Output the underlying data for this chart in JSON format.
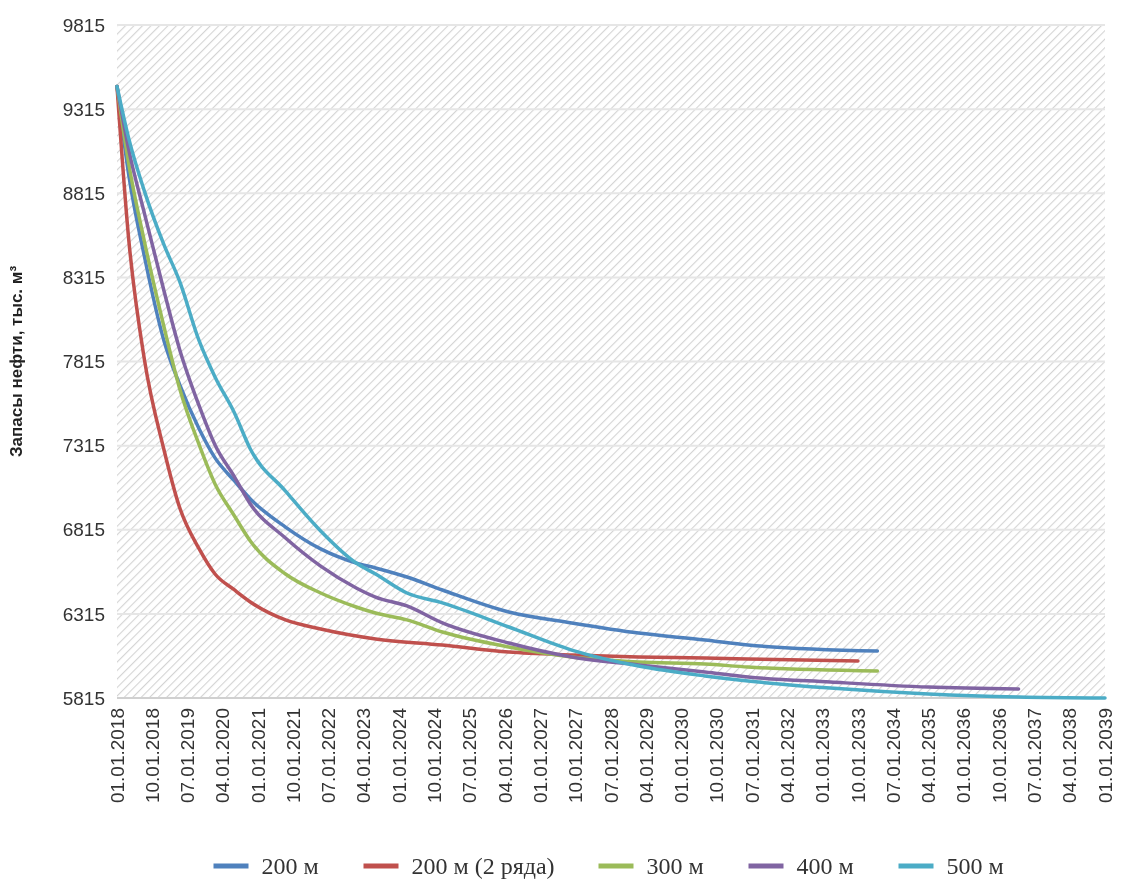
{
  "chart_data": {
    "type": "line",
    "ylabel": "Запасы нефти, тыс. м³",
    "ylim": [
      5815,
      9815
    ],
    "yticks": [
      5815,
      6315,
      6815,
      7315,
      7815,
      8315,
      8815,
      9315,
      9815
    ],
    "xlim": [
      "2018-01-01",
      "2039-01-01"
    ],
    "xticks": [
      {
        "value": "2018-01-01",
        "label": "01.01.2018"
      },
      {
        "value": "2018-10-01",
        "label": "10.01.2018"
      },
      {
        "value": "2019-07-01",
        "label": "07.01.2019"
      },
      {
        "value": "2020-04-01",
        "label": "04.01.2020"
      },
      {
        "value": "2021-01-01",
        "label": "01.01.2021"
      },
      {
        "value": "2021-10-01",
        "label": "10.01.2021"
      },
      {
        "value": "2022-07-01",
        "label": "07.01.2022"
      },
      {
        "value": "2023-04-01",
        "label": "04.01.2023"
      },
      {
        "value": "2024-01-01",
        "label": "01.01.2024"
      },
      {
        "value": "2024-10-01",
        "label": "10.01.2024"
      },
      {
        "value": "2025-07-01",
        "label": "07.01.2025"
      },
      {
        "value": "2026-04-01",
        "label": "04.01.2026"
      },
      {
        "value": "2027-01-01",
        "label": "01.01.2027"
      },
      {
        "value": "2027-10-01",
        "label": "10.01.2027"
      },
      {
        "value": "2028-07-01",
        "label": "07.01.2028"
      },
      {
        "value": "2029-04-01",
        "label": "04.01.2029"
      },
      {
        "value": "2030-01-01",
        "label": "01.01.2030"
      },
      {
        "value": "2030-10-01",
        "label": "10.01.2030"
      },
      {
        "value": "2031-07-01",
        "label": "07.01.2031"
      },
      {
        "value": "2032-04-01",
        "label": "04.01.2032"
      },
      {
        "value": "2033-01-01",
        "label": "01.01.2033"
      },
      {
        "value": "2033-10-01",
        "label": "10.01.2033"
      },
      {
        "value": "2034-07-01",
        "label": "07.01.2034"
      },
      {
        "value": "2035-04-01",
        "label": "04.01.2035"
      },
      {
        "value": "2036-01-01",
        "label": "01.01.2036"
      },
      {
        "value": "2036-10-01",
        "label": "10.01.2036"
      },
      {
        "value": "2037-07-01",
        "label": "07.01.2037"
      },
      {
        "value": "2038-04-01",
        "label": "04.01.2038"
      },
      {
        "value": "2039-01-01",
        "label": "01.01.2039"
      }
    ],
    "grid": "y",
    "legend": "bottom",
    "line_style": "solid",
    "series": [
      {
        "name": "200 м",
        "color": "#4f81bd",
        "x": [
          "2018-01",
          "2018-04",
          "2018-08",
          "2019-01",
          "2019-05",
          "2019-10",
          "2020-02",
          "2020-07",
          "2020-11",
          "2021-08",
          "2022-05",
          "2023-02",
          "2023-07",
          "2024-03",
          "2024-12",
          "2026-05",
          "2027-09",
          "2029-02",
          "2030-07",
          "2031-06",
          "2034-03"
        ],
        "values": [
          9450,
          8930,
          8442,
          7937,
          7681,
          7414,
          7242,
          7105,
          6998,
          6831,
          6701,
          6617,
          6588,
          6534,
          6457,
          6326,
          6261,
          6201,
          6160,
          6130,
          6094
        ]
      },
      {
        "name": "200 м (2 ряда)",
        "color": "#c0504d",
        "x": [
          "2018-01",
          "2018-04",
          "2018-08",
          "2019-01",
          "2019-05",
          "2019-10",
          "2020-02",
          "2020-07",
          "2020-11",
          "2021-08",
          "2022-05",
          "2023-07",
          "2024-12",
          "2026-05",
          "2027-09",
          "2029-02",
          "2030-07",
          "2031-06",
          "2033-10"
        ],
        "values": [
          9450,
          8549,
          7830,
          7289,
          6950,
          6701,
          6552,
          6457,
          6386,
          6279,
          6225,
          6166,
          6130,
          6088,
          6071,
          6059,
          6053,
          6047,
          6035
        ]
      },
      {
        "name": "300 м",
        "color": "#9bbb59",
        "x": [
          "2018-01",
          "2018-04",
          "2018-08",
          "2019-01",
          "2019-05",
          "2019-10",
          "2020-02",
          "2020-07",
          "2020-11",
          "2021-08",
          "2022-05",
          "2023-02",
          "2023-07",
          "2024-03",
          "2024-12",
          "2026-05",
          "2027-09",
          "2029-02",
          "2030-07",
          "2031-06",
          "2034-03"
        ],
        "values": [
          9450,
          8995,
          8531,
          8020,
          7658,
          7319,
          7087,
          6897,
          6748,
          6552,
          6439,
          6356,
          6320,
          6279,
          6207,
          6118,
          6059,
          6029,
          6017,
          5999,
          5975
        ]
      },
      {
        "name": "400 м",
        "color": "#8064a2",
        "x": [
          "2018-01",
          "2018-04",
          "2018-08",
          "2019-01",
          "2019-05",
          "2019-10",
          "2020-02",
          "2020-07",
          "2020-11",
          "2021-08",
          "2022-05",
          "2023-02",
          "2023-07",
          "2024-03",
          "2024-12",
          "2026-05",
          "2027-09",
          "2029-02",
          "2030-07",
          "2031-06",
          "2033-03",
          "2035-04",
          "2037-03"
        ],
        "values": [
          9450,
          9078,
          8698,
          8234,
          7890,
          7551,
          7319,
          7129,
          6968,
          6766,
          6599,
          6469,
          6415,
          6362,
          6261,
          6142,
          6059,
          6011,
          5970,
          5940,
          5910,
          5880,
          5868
        ]
      },
      {
        "name": "500 м",
        "color": "#4bacc6",
        "x": [
          "2018-01",
          "2018-04",
          "2018-08",
          "2019-01",
          "2019-05",
          "2019-10",
          "2020-02",
          "2020-07",
          "2020-11",
          "2021-08",
          "2022-05",
          "2023-02",
          "2023-07",
          "2024-03",
          "2024-12",
          "2026-05",
          "2027-09",
          "2029-02",
          "2030-07",
          "2031-06",
          "2033-03",
          "2035-04",
          "2037-03",
          "2039-01"
        ],
        "values": [
          9450,
          9144,
          8829,
          8508,
          8294,
          7937,
          7723,
          7509,
          7295,
          7045,
          6808,
          6617,
          6552,
          6439,
          6380,
          6237,
          6100,
          6005,
          5946,
          5916,
          5874,
          5839,
          5821,
          5815
        ]
      }
    ]
  }
}
